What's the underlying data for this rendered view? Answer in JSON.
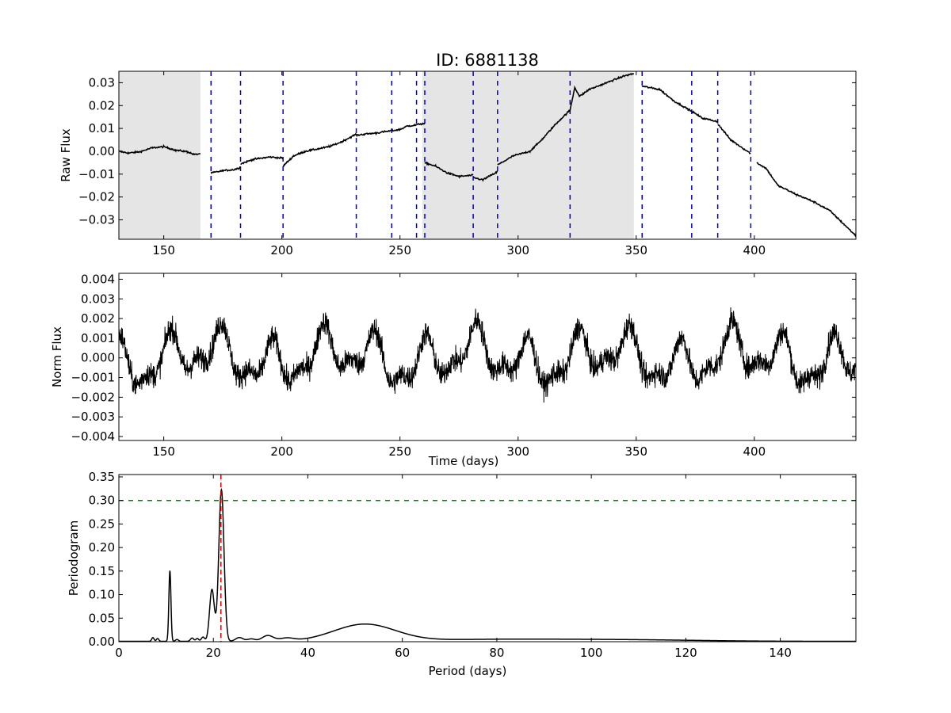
{
  "title": "ID: 6881138",
  "chart_data": [
    {
      "type": "line",
      "panel": "raw",
      "ylabel": "Raw Flux",
      "xlabel": "",
      "xlim": [
        131,
        443
      ],
      "ylim": [
        -0.0385,
        0.035
      ],
      "xticks": [
        150,
        200,
        250,
        300,
        350,
        400
      ],
      "xtick_labels": [
        "150",
        "200",
        "250",
        "300",
        "350",
        "400"
      ],
      "yticks": [
        -0.03,
        -0.02,
        -0.01,
        0.0,
        0.01,
        0.02,
        0.03
      ],
      "ytick_labels": [
        "−0.03",
        "−0.02",
        "−0.01",
        "0.00",
        "0.01",
        "0.02",
        "0.03"
      ],
      "shaded_regions": [
        [
          131,
          165.5
        ],
        [
          259.5,
          349
        ]
      ],
      "shade_color": "#e5e5e5",
      "vlines": [
        170,
        182.5,
        200.5,
        231.5,
        246.5,
        257,
        260.5,
        281,
        291.3,
        322,
        352.5,
        373.5,
        384.5,
        398.5
      ],
      "vline_color": "#0000cc",
      "line_color": "#000000",
      "segments": [
        {
          "x": [
            131,
            135,
            140,
            145,
            150,
            155,
            160,
            163,
            165.5
          ],
          "y": [
            0.0,
            -0.0008,
            -0.0002,
            0.0015,
            0.002,
            0.0005,
            -0.0002,
            -0.0015,
            -0.001
          ]
        },
        {
          "x": [
            170,
            175,
            180,
            182.5
          ],
          "y": [
            -0.0095,
            -0.0085,
            -0.008,
            -0.007
          ]
        },
        {
          "x": [
            182.5,
            188,
            195,
            200.5
          ],
          "y": [
            -0.0055,
            -0.0035,
            -0.0025,
            -0.003
          ]
        },
        {
          "x": [
            200.5,
            205,
            210,
            220,
            225,
            231.5
          ],
          "y": [
            -0.0065,
            -0.002,
            0.0,
            0.002,
            0.004,
            0.0075
          ]
        },
        {
          "x": [
            231.5,
            235,
            240,
            246.5
          ],
          "y": [
            0.007,
            0.0075,
            0.008,
            0.009
          ]
        },
        {
          "x": [
            246.5,
            250,
            253,
            257
          ],
          "y": [
            0.009,
            0.0095,
            0.011,
            0.0115
          ]
        },
        {
          "x": [
            257,
            258.5,
            260.5
          ],
          "y": [
            0.0115,
            0.012,
            0.012
          ]
        },
        {
          "x": [
            260.5,
            265,
            270,
            275,
            281
          ],
          "y": [
            -0.005,
            -0.0065,
            -0.0095,
            -0.011,
            -0.0105
          ]
        },
        {
          "x": [
            281,
            285,
            291.3
          ],
          "y": [
            -0.0115,
            -0.0125,
            -0.009
          ]
        },
        {
          "x": [
            291.3,
            298,
            305,
            310,
            316,
            322
          ],
          "y": [
            -0.006,
            -0.002,
            0.0,
            0.005,
            0.012,
            0.018
          ]
        },
        {
          "x": [
            322,
            324,
            326,
            330,
            340,
            345,
            349
          ],
          "y": [
            0.018,
            0.028,
            0.024,
            0.027,
            0.031,
            0.033,
            0.034
          ]
        },
        {
          "x": [
            352.5,
            360,
            366,
            373.5
          ],
          "y": [
            0.0285,
            0.027,
            0.022,
            0.0175
          ]
        },
        {
          "x": [
            373.5,
            378,
            384.5
          ],
          "y": [
            0.0175,
            0.0145,
            0.013
          ]
        },
        {
          "x": [
            384.5,
            390,
            398.5
          ],
          "y": [
            0.012,
            0.005,
            -0.001
          ]
        },
        {
          "x": [
            401,
            405,
            410,
            418,
            425,
            432,
            438,
            443
          ],
          "y": [
            -0.005,
            -0.0075,
            -0.015,
            -0.019,
            -0.022,
            -0.026,
            -0.032,
            -0.037
          ]
        }
      ]
    },
    {
      "type": "line",
      "panel": "norm",
      "ylabel": "Norm Flux",
      "xlabel": "Time (days)",
      "xlim": [
        131,
        443
      ],
      "ylim": [
        -0.0042,
        0.0043
      ],
      "xticks": [
        150,
        200,
        250,
        300,
        350,
        400
      ],
      "xtick_labels": [
        "150",
        "200",
        "250",
        "300",
        "350",
        "400"
      ],
      "yticks": [
        -0.004,
        -0.003,
        -0.002,
        -0.001,
        0.0,
        0.001,
        0.002,
        0.003,
        0.004
      ],
      "ytick_labels": [
        "−0.004",
        "−0.003",
        "−0.002",
        "−0.001",
        "0.000",
        "0.001",
        "0.002",
        "0.003",
        "0.004"
      ],
      "line_color": "#000000",
      "period_days": 21.6,
      "amplitude": 0.0015,
      "noise": 0.0006
    },
    {
      "type": "line",
      "panel": "periodogram",
      "ylabel": "Periodogram",
      "xlabel": "Period (days)",
      "xlim": [
        0,
        156
      ],
      "ylim": [
        0,
        0.355
      ],
      "xticks": [
        0,
        20,
        40,
        60,
        80,
        100,
        120,
        140
      ],
      "xtick_labels": [
        "0",
        "20",
        "40",
        "60",
        "80",
        "100",
        "120",
        "140"
      ],
      "yticks": [
        0.0,
        0.05,
        0.1,
        0.15,
        0.2,
        0.25,
        0.3,
        0.35
      ],
      "ytick_labels": [
        "0.00",
        "0.05",
        "0.10",
        "0.15",
        "0.20",
        "0.25",
        "0.30",
        "0.35"
      ],
      "line_color": "#000000",
      "threshold": 0.3,
      "threshold_color": "#008000",
      "best_period": 21.6,
      "best_period_color": "#dd0000",
      "peaks": [
        {
          "center": 7.2,
          "height": 0.008,
          "width": 0.25
        },
        {
          "center": 8.2,
          "height": 0.006,
          "width": 0.25
        },
        {
          "center": 10.8,
          "height": 0.15,
          "width": 0.22
        },
        {
          "center": 12.3,
          "height": 0.004,
          "width": 0.3
        },
        {
          "center": 15.5,
          "height": 0.007,
          "width": 0.35
        },
        {
          "center": 16.6,
          "height": 0.006,
          "width": 0.3
        },
        {
          "center": 17.8,
          "height": 0.009,
          "width": 0.35
        },
        {
          "center": 19.7,
          "height": 0.11,
          "width": 0.5
        },
        {
          "center": 21.7,
          "height": 0.322,
          "width": 0.55
        },
        {
          "center": 25.5,
          "height": 0.008,
          "width": 0.8
        },
        {
          "center": 28.0,
          "height": 0.005,
          "width": 0.8
        },
        {
          "center": 31.5,
          "height": 0.012,
          "width": 1.2
        },
        {
          "center": 35.5,
          "height": 0.006,
          "width": 1.5
        },
        {
          "center": 52.0,
          "height": 0.036,
          "width": 6.5
        },
        {
          "center": 80.0,
          "height": 0.004,
          "width": 15.0
        },
        {
          "center": 108.0,
          "height": 0.003,
          "width": 15.0
        }
      ]
    }
  ]
}
